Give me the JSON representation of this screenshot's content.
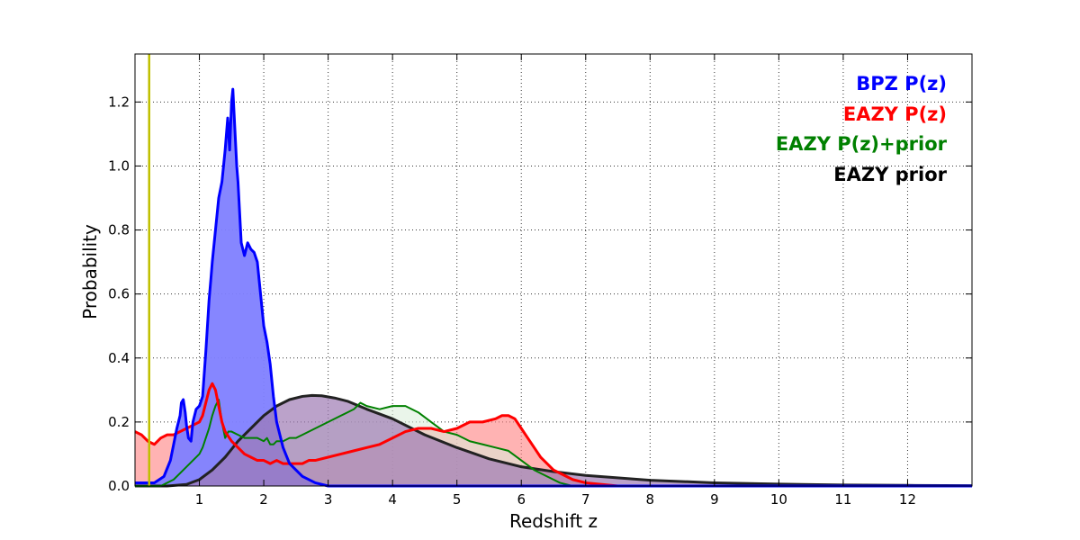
{
  "chart_data": {
    "type": "area",
    "xlabel": "Redshift z",
    "ylabel": "Probability",
    "xlim": [
      0,
      13
    ],
    "ylim": [
      0,
      1.35
    ],
    "x_ticks": [
      1,
      2,
      3,
      4,
      5,
      6,
      7,
      8,
      9,
      10,
      11,
      12
    ],
    "x_tick_labels": [
      "1",
      "2",
      "3",
      "4",
      "5",
      "6",
      "7",
      "8",
      "9",
      "10",
      "11",
      "12"
    ],
    "y_ticks": [
      0,
      0.2,
      0.4,
      0.6,
      0.8,
      1.0,
      1.2
    ],
    "y_tick_labels": [
      "0.0",
      "0.2",
      "0.4",
      "0.6",
      "0.8",
      "1.0",
      "1.2"
    ],
    "grid": true,
    "legend_position": "top-right",
    "reference_line": {
      "x": 0.22,
      "color": "#bfbf00"
    },
    "series": [
      {
        "name": "BPZ P(z)",
        "color": "#0000ff",
        "fill": "#8080ff",
        "line_width": 3,
        "x": [
          0,
          0.3,
          0.45,
          0.55,
          0.6,
          0.65,
          0.7,
          0.72,
          0.75,
          0.78,
          0.8,
          0.83,
          0.87,
          0.9,
          0.95,
          1.0,
          1.05,
          1.1,
          1.15,
          1.18,
          1.2,
          1.25,
          1.3,
          1.35,
          1.4,
          1.44,
          1.47,
          1.5,
          1.52,
          1.55,
          1.58,
          1.6,
          1.65,
          1.7,
          1.75,
          1.8,
          1.85,
          1.9,
          1.95,
          2.0,
          2.05,
          2.1,
          2.15,
          2.2,
          2.3,
          2.4,
          2.5,
          2.6,
          2.8,
          3.0,
          13
        ],
        "y": [
          0.01,
          0.01,
          0.03,
          0.08,
          0.13,
          0.18,
          0.22,
          0.26,
          0.27,
          0.23,
          0.19,
          0.15,
          0.14,
          0.2,
          0.24,
          0.25,
          0.28,
          0.42,
          0.58,
          0.65,
          0.7,
          0.8,
          0.9,
          0.95,
          1.05,
          1.15,
          1.05,
          1.2,
          1.24,
          1.12,
          1.0,
          0.95,
          0.76,
          0.72,
          0.76,
          0.74,
          0.73,
          0.7,
          0.6,
          0.5,
          0.45,
          0.38,
          0.28,
          0.2,
          0.12,
          0.07,
          0.05,
          0.03,
          0.01,
          0.0,
          0.0
        ]
      },
      {
        "name": "EAZY P(z)",
        "color": "#ff0000",
        "fill": "#ff8080",
        "line_width": 3,
        "x": [
          0,
          0.1,
          0.2,
          0.3,
          0.4,
          0.5,
          0.6,
          0.7,
          0.8,
          0.9,
          1.0,
          1.05,
          1.1,
          1.15,
          1.2,
          1.25,
          1.3,
          1.35,
          1.4,
          1.5,
          1.6,
          1.7,
          1.8,
          1.9,
          2.0,
          2.1,
          2.2,
          2.3,
          2.4,
          2.5,
          2.6,
          2.7,
          2.8,
          3.0,
          3.2,
          3.4,
          3.6,
          3.8,
          4.0,
          4.2,
          4.4,
          4.6,
          4.8,
          5.0,
          5.2,
          5.4,
          5.6,
          5.7,
          5.8,
          5.9,
          6.0,
          6.1,
          6.2,
          6.3,
          6.4,
          6.5,
          6.6,
          6.8,
          7.0,
          7.5,
          8,
          13
        ],
        "y": [
          0.17,
          0.16,
          0.14,
          0.13,
          0.15,
          0.16,
          0.16,
          0.17,
          0.18,
          0.19,
          0.2,
          0.22,
          0.26,
          0.3,
          0.32,
          0.3,
          0.25,
          0.2,
          0.17,
          0.14,
          0.12,
          0.1,
          0.09,
          0.08,
          0.08,
          0.07,
          0.08,
          0.07,
          0.07,
          0.07,
          0.07,
          0.08,
          0.08,
          0.09,
          0.1,
          0.11,
          0.12,
          0.13,
          0.15,
          0.17,
          0.18,
          0.18,
          0.17,
          0.18,
          0.2,
          0.2,
          0.21,
          0.22,
          0.22,
          0.21,
          0.18,
          0.15,
          0.12,
          0.09,
          0.07,
          0.05,
          0.04,
          0.02,
          0.01,
          0.0,
          0.0,
          0.0
        ]
      },
      {
        "name": "EAZY P(z)+prior",
        "color": "#008000",
        "fill": "#d8ecd8",
        "line_width": 2,
        "x": [
          0,
          0.4,
          0.5,
          0.6,
          0.7,
          0.8,
          0.9,
          1.0,
          1.05,
          1.1,
          1.15,
          1.2,
          1.25,
          1.3,
          1.35,
          1.4,
          1.45,
          1.5,
          1.6,
          1.7,
          1.8,
          1.9,
          2.0,
          2.05,
          2.1,
          2.15,
          2.2,
          2.3,
          2.4,
          2.5,
          2.6,
          2.8,
          3.0,
          3.2,
          3.3,
          3.4,
          3.5,
          3.6,
          3.8,
          4.0,
          4.2,
          4.4,
          4.6,
          4.8,
          5.0,
          5.2,
          5.4,
          5.6,
          5.8,
          6.0,
          6.2,
          6.4,
          6.6,
          6.8,
          7.0,
          7.5,
          13
        ],
        "y": [
          0.0,
          0.0,
          0.01,
          0.02,
          0.04,
          0.06,
          0.08,
          0.1,
          0.12,
          0.15,
          0.18,
          0.22,
          0.25,
          0.27,
          0.2,
          0.15,
          0.17,
          0.17,
          0.16,
          0.15,
          0.15,
          0.15,
          0.14,
          0.15,
          0.13,
          0.13,
          0.14,
          0.14,
          0.15,
          0.15,
          0.16,
          0.18,
          0.2,
          0.22,
          0.23,
          0.24,
          0.26,
          0.25,
          0.24,
          0.25,
          0.25,
          0.23,
          0.2,
          0.17,
          0.16,
          0.14,
          0.13,
          0.12,
          0.11,
          0.08,
          0.05,
          0.03,
          0.01,
          0.0,
          0.0,
          0.0,
          0.0
        ]
      },
      {
        "name": "EAZY prior",
        "color": "#222222",
        "fill": "#9e7ab3",
        "line_width": 3,
        "x": [
          0,
          0.5,
          0.8,
          1.0,
          1.2,
          1.4,
          1.6,
          1.8,
          2.0,
          2.2,
          2.4,
          2.6,
          2.75,
          2.9,
          3.1,
          3.3,
          3.6,
          4.0,
          4.5,
          5.0,
          5.5,
          6.0,
          6.5,
          7.0,
          8.0,
          9.0,
          10.0,
          11.0,
          12.0,
          13.0
        ],
        "y": [
          0.0,
          0.0,
          0.005,
          0.02,
          0.05,
          0.09,
          0.14,
          0.18,
          0.22,
          0.25,
          0.27,
          0.28,
          0.283,
          0.282,
          0.275,
          0.265,
          0.24,
          0.21,
          0.16,
          0.12,
          0.085,
          0.06,
          0.045,
          0.033,
          0.018,
          0.01,
          0.006,
          0.003,
          0.002,
          0.001
        ]
      }
    ]
  }
}
